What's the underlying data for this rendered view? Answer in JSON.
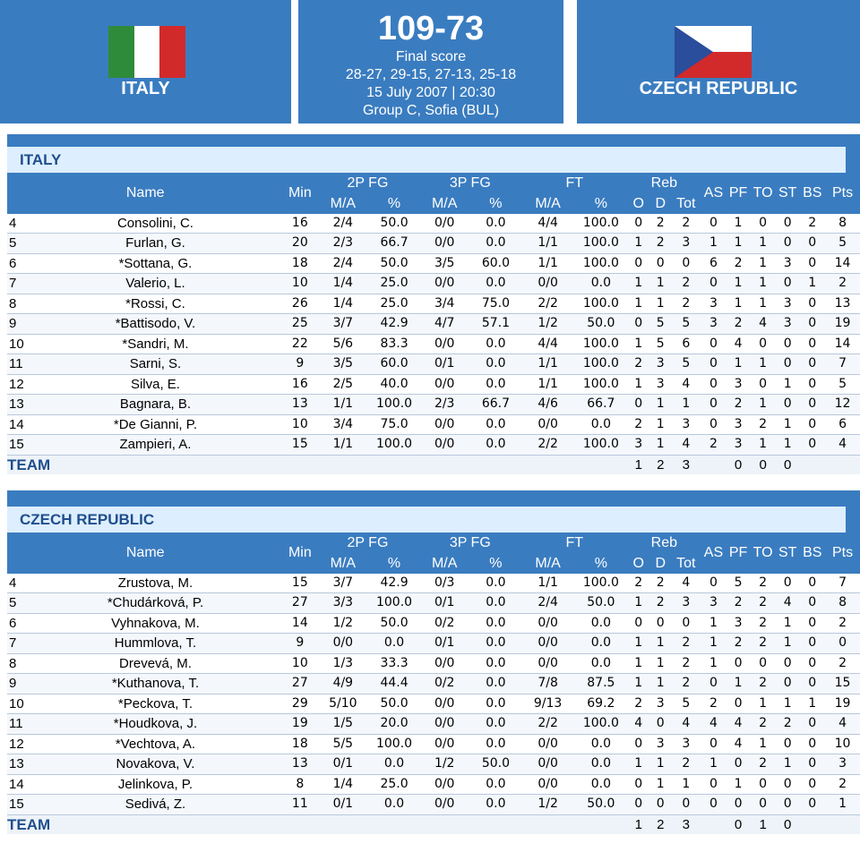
{
  "header": {
    "home_team": "ITALY",
    "away_team": "CZECH REPUBLIC",
    "score": "109-73",
    "status": "Final score",
    "quarters": "28-27, 29-15, 27-13, 25-18",
    "datetime": "15 July 2007 | 20:30",
    "venue": "Group C, Sofia (BUL)",
    "colors": {
      "blue": "#3a7cc0",
      "it_green": "#2e8b3a",
      "it_red": "#d22a2a",
      "cz_blue": "#2a4d9c",
      "cz_red": "#d22a2a"
    }
  },
  "columns": {
    "name": "Name",
    "min": "Min",
    "fg2": "2P FG",
    "fg3": "3P FG",
    "ft": "FT",
    "reb": "Reb",
    "as": "AS",
    "pf": "PF",
    "to": "TO",
    "st": "ST",
    "bs": "BS",
    "pts": "Pts",
    "ma": "M/A",
    "pct": "%",
    "o": "O",
    "d": "D",
    "tot": "Tot"
  },
  "italy": {
    "title": "ITALY",
    "players": [
      [
        "4",
        "Consolini, C.",
        "16",
        "2/4",
        "50.0",
        "0/0",
        "0.0",
        "4/4",
        "100.0",
        "0",
        "2",
        "2",
        "0",
        "1",
        "0",
        "0",
        "2",
        "8"
      ],
      [
        "5",
        "Furlan, G.",
        "20",
        "2/3",
        "66.7",
        "0/0",
        "0.0",
        "1/1",
        "100.0",
        "1",
        "2",
        "3",
        "1",
        "1",
        "1",
        "0",
        "0",
        "5"
      ],
      [
        "6",
        "*Sottana, G.",
        "18",
        "2/4",
        "50.0",
        "3/5",
        "60.0",
        "1/1",
        "100.0",
        "0",
        "0",
        "0",
        "6",
        "2",
        "1",
        "3",
        "0",
        "14"
      ],
      [
        "7",
        "Valerio, L.",
        "10",
        "1/4",
        "25.0",
        "0/0",
        "0.0",
        "0/0",
        "0.0",
        "1",
        "1",
        "2",
        "0",
        "1",
        "1",
        "0",
        "1",
        "2"
      ],
      [
        "8",
        "*Rossi, C.",
        "26",
        "1/4",
        "25.0",
        "3/4",
        "75.0",
        "2/2",
        "100.0",
        "1",
        "1",
        "2",
        "3",
        "1",
        "1",
        "3",
        "0",
        "13"
      ],
      [
        "9",
        "*Battisodo, V.",
        "25",
        "3/7",
        "42.9",
        "4/7",
        "57.1",
        "1/2",
        "50.0",
        "0",
        "5",
        "5",
        "3",
        "2",
        "4",
        "3",
        "0",
        "19"
      ],
      [
        "10",
        "*Sandri, M.",
        "22",
        "5/6",
        "83.3",
        "0/0",
        "0.0",
        "4/4",
        "100.0",
        "1",
        "5",
        "6",
        "0",
        "4",
        "0",
        "0",
        "0",
        "14"
      ],
      [
        "11",
        "Sarni, S.",
        "9",
        "3/5",
        "60.0",
        "0/1",
        "0.0",
        "1/1",
        "100.0",
        "2",
        "3",
        "5",
        "0",
        "1",
        "1",
        "0",
        "0",
        "7"
      ],
      [
        "12",
        "Silva, E.",
        "16",
        "2/5",
        "40.0",
        "0/0",
        "0.0",
        "1/1",
        "100.0",
        "1",
        "3",
        "4",
        "0",
        "3",
        "0",
        "1",
        "0",
        "5"
      ],
      [
        "13",
        "Bagnara, B.",
        "13",
        "1/1",
        "100.0",
        "2/3",
        "66.7",
        "4/6",
        "66.7",
        "0",
        "1",
        "1",
        "0",
        "2",
        "1",
        "0",
        "0",
        "12"
      ],
      [
        "14",
        "*De Gianni, P.",
        "10",
        "3/4",
        "75.0",
        "0/0",
        "0.0",
        "0/0",
        "0.0",
        "2",
        "1",
        "3",
        "0",
        "3",
        "2",
        "1",
        "0",
        "6"
      ],
      [
        "15",
        "Zampieri, A.",
        "15",
        "1/1",
        "100.0",
        "0/0",
        "0.0",
        "2/2",
        "100.0",
        "3",
        "1",
        "4",
        "2",
        "3",
        "1",
        "1",
        "0",
        "4"
      ]
    ],
    "team_label": "TEAM",
    "team_row": {
      "o": "1",
      "d": "2",
      "tot": "3",
      "pf": "0",
      "to": "0",
      "st": "0"
    }
  },
  "czech": {
    "title": "CZECH REPUBLIC",
    "players": [
      [
        "4",
        "Zrustova, M.",
        "15",
        "3/7",
        "42.9",
        "0/3",
        "0.0",
        "1/1",
        "100.0",
        "2",
        "2",
        "4",
        "0",
        "5",
        "2",
        "0",
        "0",
        "7"
      ],
      [
        "5",
        "*Chudárková, P.",
        "27",
        "3/3",
        "100.0",
        "0/1",
        "0.0",
        "2/4",
        "50.0",
        "1",
        "2",
        "3",
        "3",
        "2",
        "2",
        "4",
        "0",
        "8"
      ],
      [
        "6",
        "Vyhnakova, M.",
        "14",
        "1/2",
        "50.0",
        "0/2",
        "0.0",
        "0/0",
        "0.0",
        "0",
        "0",
        "0",
        "1",
        "3",
        "2",
        "1",
        "0",
        "2"
      ],
      [
        "7",
        "Hummlova, T.",
        "9",
        "0/0",
        "0.0",
        "0/1",
        "0.0",
        "0/0",
        "0.0",
        "1",
        "1",
        "2",
        "1",
        "2",
        "2",
        "1",
        "0",
        "0"
      ],
      [
        "8",
        "Drevevá, M.",
        "10",
        "1/3",
        "33.3",
        "0/0",
        "0.0",
        "0/0",
        "0.0",
        "1",
        "1",
        "2",
        "1",
        "0",
        "0",
        "0",
        "0",
        "2"
      ],
      [
        "9",
        "*Kuthanova, T.",
        "27",
        "4/9",
        "44.4",
        "0/2",
        "0.0",
        "7/8",
        "87.5",
        "1",
        "1",
        "2",
        "0",
        "1",
        "2",
        "0",
        "0",
        "15"
      ],
      [
        "10",
        "*Peckova, T.",
        "29",
        "5/10",
        "50.0",
        "0/0",
        "0.0",
        "9/13",
        "69.2",
        "2",
        "3",
        "5",
        "2",
        "0",
        "1",
        "1",
        "1",
        "19"
      ],
      [
        "11",
        "*Houdkova, J.",
        "19",
        "1/5",
        "20.0",
        "0/0",
        "0.0",
        "2/2",
        "100.0",
        "4",
        "0",
        "4",
        "4",
        "4",
        "2",
        "2",
        "0",
        "4"
      ],
      [
        "12",
        "*Vechtova, A.",
        "18",
        "5/5",
        "100.0",
        "0/0",
        "0.0",
        "0/0",
        "0.0",
        "0",
        "3",
        "3",
        "0",
        "4",
        "1",
        "0",
        "0",
        "10"
      ],
      [
        "13",
        "Novakova, V.",
        "13",
        "0/1",
        "0.0",
        "1/2",
        "50.0",
        "0/0",
        "0.0",
        "1",
        "1",
        "2",
        "1",
        "0",
        "2",
        "1",
        "0",
        "3"
      ],
      [
        "14",
        "Jelinkova, P.",
        "8",
        "1/4",
        "25.0",
        "0/0",
        "0.0",
        "0/0",
        "0.0",
        "0",
        "1",
        "1",
        "0",
        "1",
        "0",
        "0",
        "0",
        "2"
      ],
      [
        "15",
        "Sedivá, Z.",
        "11",
        "0/1",
        "0.0",
        "0/0",
        "0.0",
        "1/2",
        "50.0",
        "0",
        "0",
        "0",
        "0",
        "0",
        "0",
        "0",
        "0",
        "1"
      ]
    ],
    "team_label": "TEAM",
    "team_row": {
      "o": "1",
      "d": "2",
      "tot": "3",
      "pf": "0",
      "to": "1",
      "st": "0"
    }
  }
}
